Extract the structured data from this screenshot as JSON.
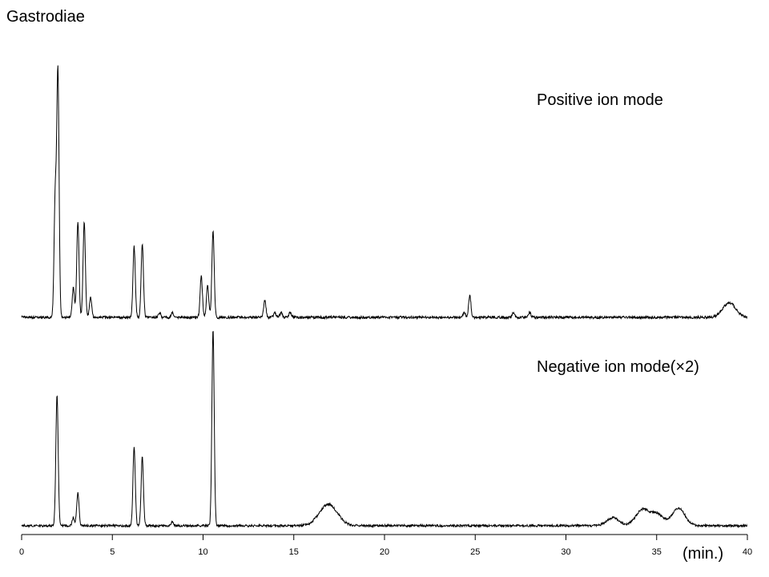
{
  "chart_data": {
    "type": "line",
    "title": "Gastrodiae",
    "xlabel": "(min.)",
    "xlim": [
      0,
      40
    ],
    "x_ticks": [
      0,
      5,
      10,
      15,
      20,
      25,
      30,
      35,
      40
    ],
    "grid": false,
    "series": [
      {
        "name": "Positive ion mode",
        "peaks": [
          {
            "x": 1.85,
            "y": 0.48
          },
          {
            "x": 2.0,
            "y": 1.0
          },
          {
            "x": 2.85,
            "y": 0.12
          },
          {
            "x": 3.1,
            "y": 0.39
          },
          {
            "x": 3.45,
            "y": 0.39
          },
          {
            "x": 3.8,
            "y": 0.08
          },
          {
            "x": 6.2,
            "y": 0.29
          },
          {
            "x": 6.65,
            "y": 0.3
          },
          {
            "x": 7.6,
            "y": 0.02
          },
          {
            "x": 8.3,
            "y": 0.02
          },
          {
            "x": 9.9,
            "y": 0.17
          },
          {
            "x": 10.25,
            "y": 0.13
          },
          {
            "x": 10.55,
            "y": 0.35
          },
          {
            "x": 13.4,
            "y": 0.07
          },
          {
            "x": 13.95,
            "y": 0.02
          },
          {
            "x": 14.3,
            "y": 0.02
          },
          {
            "x": 14.8,
            "y": 0.02
          },
          {
            "x": 24.4,
            "y": 0.02
          },
          {
            "x": 24.7,
            "y": 0.09
          },
          {
            "x": 27.1,
            "y": 0.02
          },
          {
            "x": 28.0,
            "y": 0.02
          },
          {
            "x": 39.0,
            "y": 0.06
          }
        ]
      },
      {
        "name": "Negative ion mode(×2)",
        "peaks": [
          {
            "x": 1.95,
            "y": 0.67
          },
          {
            "x": 2.85,
            "y": 0.04
          },
          {
            "x": 3.1,
            "y": 0.17
          },
          {
            "x": 6.2,
            "y": 0.4
          },
          {
            "x": 6.65,
            "y": 0.35
          },
          {
            "x": 8.3,
            "y": 0.02
          },
          {
            "x": 10.55,
            "y": 1.0
          },
          {
            "x": 16.9,
            "y": 0.11
          },
          {
            "x": 32.6,
            "y": 0.04
          },
          {
            "x": 34.2,
            "y": 0.08
          },
          {
            "x": 35.0,
            "y": 0.06
          },
          {
            "x": 36.2,
            "y": 0.09
          }
        ]
      }
    ]
  }
}
